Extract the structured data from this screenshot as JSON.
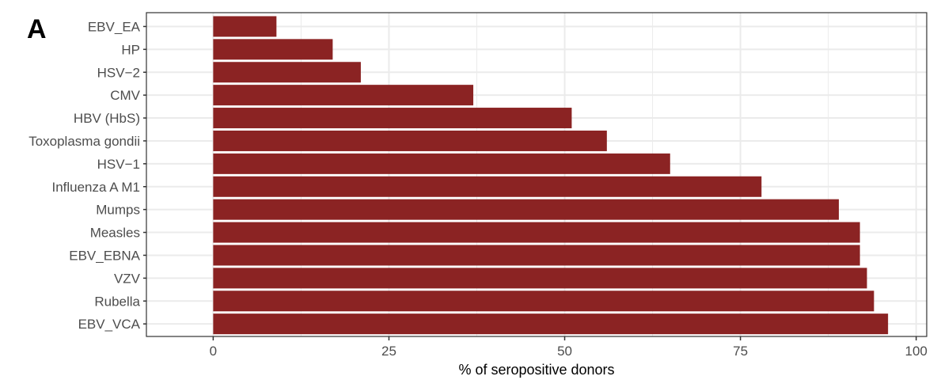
{
  "panel_label": "A",
  "colors": {
    "bar": "#8b2323",
    "grid": "#ebebeb",
    "frame": "#333333"
  },
  "chart_data": {
    "type": "bar",
    "orientation": "horizontal",
    "xlabel": "% of seropositive donors",
    "ylabel": "",
    "xlim": [
      -9.5,
      101.5
    ],
    "xticks": [
      0,
      25,
      50,
      75,
      100
    ],
    "xtick_labels": [
      "0",
      "25",
      "50",
      "75",
      "100"
    ],
    "grid": true,
    "categories": [
      "EBV_EA",
      "HP",
      "HSV−2",
      "CMV",
      "HBV (HbS)",
      "Toxoplasma gondii",
      "HSV−1",
      "Influenza A M1",
      "Mumps",
      "Measles",
      "EBV_EBNA",
      "VZV",
      "Rubella",
      "EBV_VCA"
    ],
    "values": [
      9,
      17,
      21,
      37,
      51,
      56,
      65,
      78,
      89,
      92,
      92,
      93,
      94,
      96
    ]
  }
}
